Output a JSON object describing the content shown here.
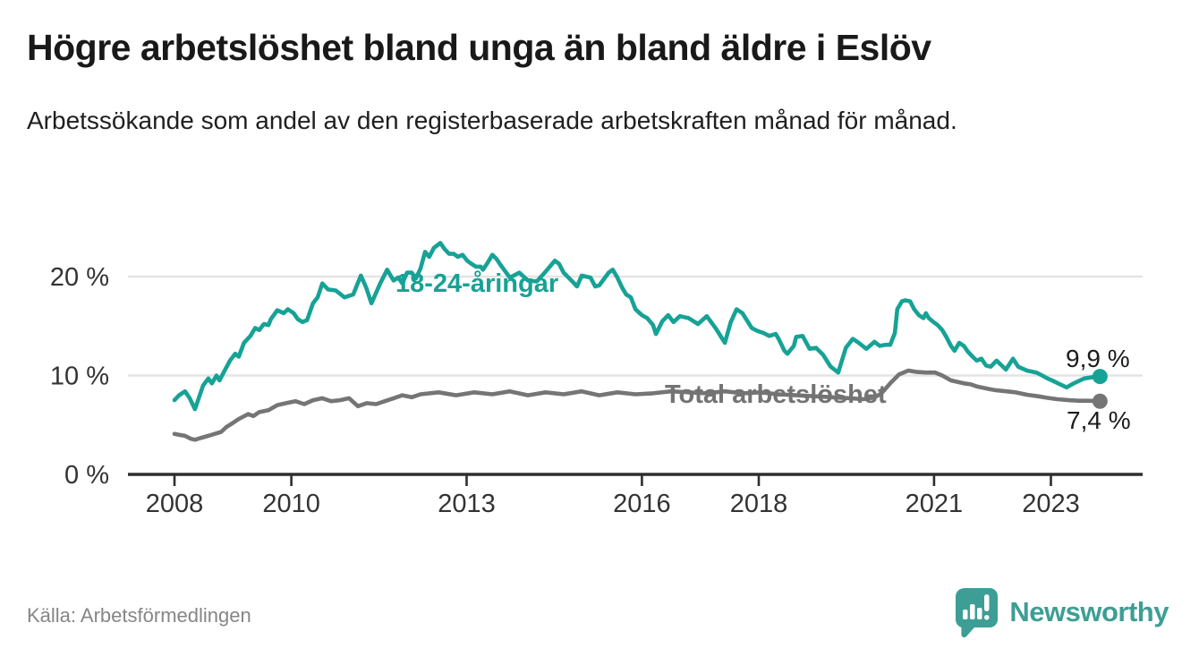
{
  "header": {
    "title": "Högre arbetslöshet bland unga än bland äldre i Eslöv",
    "subtitle": "Arbetssökande som andel av den registerbaserade arbetskraften månad för månad."
  },
  "chart_data": {
    "type": "line",
    "title": "Högre arbetslöshet bland unga än bland äldre i Eslöv",
    "subtitle": "Arbetssökande som andel av den registerbaserade arbetskraften månad för månad.",
    "grid": "horizontal-only",
    "x_axis": {
      "ticks": [
        2008,
        2010,
        2013,
        2016,
        2018,
        2021,
        2023
      ],
      "range": [
        2007.2,
        2024.6
      ]
    },
    "y_axis": {
      "ticks": [
        0,
        10,
        20
      ],
      "tick_suffix": " %",
      "range": [
        0,
        24
      ]
    },
    "colors": {
      "youth": "#17a296",
      "total": "#757575",
      "gridline": "#e4e4e4",
      "axis": "#2e2e2e",
      "tick_text": "#333333"
    },
    "series": [
      {
        "name": "18-24-åringar",
        "color": "#17a296",
        "end_value": 9.9,
        "end_label": "9,9 %",
        "points": [
          [
            2008.0,
            7.5
          ],
          [
            2008.08,
            8.0
          ],
          [
            2008.18,
            8.4
          ],
          [
            2008.26,
            7.7
          ],
          [
            2008.35,
            6.6
          ],
          [
            2008.49,
            9.0
          ],
          [
            2008.58,
            9.7
          ],
          [
            2008.64,
            9.2
          ],
          [
            2008.72,
            10.0
          ],
          [
            2008.77,
            9.5
          ],
          [
            2008.84,
            10.3
          ],
          [
            2008.95,
            11.5
          ],
          [
            2009.04,
            12.2
          ],
          [
            2009.1,
            11.9
          ],
          [
            2009.19,
            13.3
          ],
          [
            2009.3,
            14.0
          ],
          [
            2009.38,
            14.8
          ],
          [
            2009.45,
            14.6
          ],
          [
            2009.53,
            15.2
          ],
          [
            2009.61,
            15.1
          ],
          [
            2009.65,
            15.7
          ],
          [
            2009.76,
            16.6
          ],
          [
            2009.87,
            16.3
          ],
          [
            2009.94,
            16.7
          ],
          [
            2010.04,
            16.3
          ],
          [
            2010.11,
            15.7
          ],
          [
            2010.19,
            15.4
          ],
          [
            2010.27,
            15.6
          ],
          [
            2010.37,
            17.3
          ],
          [
            2010.45,
            17.9
          ],
          [
            2010.53,
            19.3
          ],
          [
            2010.63,
            18.7
          ],
          [
            2010.76,
            18.6
          ],
          [
            2010.91,
            17.9
          ],
          [
            2011.06,
            18.2
          ],
          [
            2011.19,
            20.1
          ],
          [
            2011.28,
            18.9
          ],
          [
            2011.37,
            17.3
          ],
          [
            2011.52,
            19.3
          ],
          [
            2011.64,
            20.7
          ],
          [
            2011.75,
            19.6
          ],
          [
            2011.83,
            19.9
          ],
          [
            2011.9,
            19.3
          ],
          [
            2011.98,
            20.4
          ],
          [
            2012.06,
            20.4
          ],
          [
            2012.13,
            19.8
          ],
          [
            2012.21,
            20.8
          ],
          [
            2012.29,
            22.5
          ],
          [
            2012.36,
            22.0
          ],
          [
            2012.44,
            22.9
          ],
          [
            2012.55,
            23.4
          ],
          [
            2012.62,
            22.8
          ],
          [
            2012.7,
            22.3
          ],
          [
            2012.78,
            22.3
          ],
          [
            2012.85,
            22.0
          ],
          [
            2012.93,
            22.2
          ],
          [
            2013.01,
            21.6
          ],
          [
            2013.08,
            21.3
          ],
          [
            2013.16,
            21.0
          ],
          [
            2013.24,
            21.0
          ],
          [
            2013.28,
            20.7
          ],
          [
            2013.36,
            21.4
          ],
          [
            2013.44,
            22.2
          ],
          [
            2013.51,
            21.8
          ],
          [
            2013.59,
            21.1
          ],
          [
            2013.74,
            19.9
          ],
          [
            2013.9,
            20.4
          ],
          [
            2014.05,
            19.6
          ],
          [
            2014.2,
            19.5
          ],
          [
            2014.35,
            20.5
          ],
          [
            2014.51,
            21.6
          ],
          [
            2014.58,
            21.3
          ],
          [
            2014.66,
            20.4
          ],
          [
            2014.81,
            19.5
          ],
          [
            2014.89,
            19.0
          ],
          [
            2014.97,
            20.1
          ],
          [
            2015.12,
            19.9
          ],
          [
            2015.2,
            19.0
          ],
          [
            2015.27,
            19.1
          ],
          [
            2015.43,
            20.4
          ],
          [
            2015.5,
            20.7
          ],
          [
            2015.58,
            19.9
          ],
          [
            2015.66,
            18.9
          ],
          [
            2015.73,
            18.2
          ],
          [
            2015.81,
            17.9
          ],
          [
            2015.89,
            16.7
          ],
          [
            2016.0,
            16.1
          ],
          [
            2016.09,
            15.8
          ],
          [
            2016.19,
            15.1
          ],
          [
            2016.24,
            14.2
          ],
          [
            2016.35,
            15.5
          ],
          [
            2016.45,
            16.1
          ],
          [
            2016.54,
            15.4
          ],
          [
            2016.65,
            16.0
          ],
          [
            2016.8,
            15.8
          ],
          [
            2016.96,
            15.2
          ],
          [
            2017.11,
            16.0
          ],
          [
            2017.26,
            14.8
          ],
          [
            2017.42,
            13.3
          ],
          [
            2017.52,
            15.4
          ],
          [
            2017.62,
            16.7
          ],
          [
            2017.72,
            16.3
          ],
          [
            2017.88,
            14.8
          ],
          [
            2017.98,
            14.5
          ],
          [
            2018.08,
            14.3
          ],
          [
            2018.18,
            14.0
          ],
          [
            2018.29,
            14.2
          ],
          [
            2018.34,
            13.7
          ],
          [
            2018.44,
            12.5
          ],
          [
            2018.49,
            12.2
          ],
          [
            2018.6,
            13.0
          ],
          [
            2018.64,
            13.9
          ],
          [
            2018.75,
            14.0
          ],
          [
            2018.87,
            12.7
          ],
          [
            2018.98,
            12.8
          ],
          [
            2019.1,
            12.1
          ],
          [
            2019.23,
            10.9
          ],
          [
            2019.36,
            10.3
          ],
          [
            2019.49,
            12.8
          ],
          [
            2019.61,
            13.7
          ],
          [
            2019.71,
            13.3
          ],
          [
            2019.84,
            12.7
          ],
          [
            2019.98,
            13.4
          ],
          [
            2020.07,
            13.0
          ],
          [
            2020.17,
            13.1
          ],
          [
            2020.25,
            13.1
          ],
          [
            2020.33,
            14.3
          ],
          [
            2020.37,
            16.7
          ],
          [
            2020.45,
            17.5
          ],
          [
            2020.51,
            17.6
          ],
          [
            2020.59,
            17.5
          ],
          [
            2020.66,
            16.7
          ],
          [
            2020.74,
            16.1
          ],
          [
            2020.82,
            15.8
          ],
          [
            2020.86,
            16.3
          ],
          [
            2020.91,
            15.8
          ],
          [
            2020.99,
            15.4
          ],
          [
            2021.06,
            15.1
          ],
          [
            2021.14,
            14.6
          ],
          [
            2021.21,
            13.9
          ],
          [
            2021.29,
            13.0
          ],
          [
            2021.35,
            12.5
          ],
          [
            2021.43,
            13.3
          ],
          [
            2021.51,
            13.0
          ],
          [
            2021.58,
            12.4
          ],
          [
            2021.66,
            11.9
          ],
          [
            2021.73,
            11.5
          ],
          [
            2021.81,
            11.7
          ],
          [
            2021.89,
            11.0
          ],
          [
            2021.97,
            10.9
          ],
          [
            2022.07,
            11.5
          ],
          [
            2022.23,
            10.6
          ],
          [
            2022.35,
            11.7
          ],
          [
            2022.44,
            10.9
          ],
          [
            2022.59,
            10.5
          ],
          [
            2022.75,
            10.3
          ],
          [
            2022.85,
            10.0
          ],
          [
            2022.94,
            9.7
          ],
          [
            2023.02,
            9.5
          ],
          [
            2023.16,
            9.1
          ],
          [
            2023.27,
            8.8
          ],
          [
            2023.39,
            9.2
          ],
          [
            2023.57,
            9.7
          ],
          [
            2023.73,
            9.85
          ],
          [
            2023.84,
            9.9
          ]
        ]
      },
      {
        "name": "Total arbetslöshet",
        "color": "#757575",
        "end_value": 7.4,
        "end_label": "7,4 %",
        "points": [
          [
            2008.0,
            4.1
          ],
          [
            2008.08,
            4.0
          ],
          [
            2008.18,
            3.9
          ],
          [
            2008.28,
            3.6
          ],
          [
            2008.35,
            3.5
          ],
          [
            2008.46,
            3.7
          ],
          [
            2008.58,
            3.9
          ],
          [
            2008.69,
            4.1
          ],
          [
            2008.8,
            4.3
          ],
          [
            2008.89,
            4.8
          ],
          [
            2009.0,
            5.2
          ],
          [
            2009.1,
            5.6
          ],
          [
            2009.26,
            6.1
          ],
          [
            2009.35,
            5.9
          ],
          [
            2009.45,
            6.3
          ],
          [
            2009.61,
            6.5
          ],
          [
            2009.76,
            7.0
          ],
          [
            2009.91,
            7.2
          ],
          [
            2010.07,
            7.4
          ],
          [
            2010.22,
            7.1
          ],
          [
            2010.37,
            7.5
          ],
          [
            2010.53,
            7.7
          ],
          [
            2010.68,
            7.4
          ],
          [
            2010.83,
            7.5
          ],
          [
            2010.99,
            7.7
          ],
          [
            2011.14,
            6.9
          ],
          [
            2011.29,
            7.2
          ],
          [
            2011.45,
            7.1
          ],
          [
            2011.6,
            7.4
          ],
          [
            2011.75,
            7.7
          ],
          [
            2011.9,
            8.0
          ],
          [
            2012.06,
            7.8
          ],
          [
            2012.21,
            8.1
          ],
          [
            2012.52,
            8.3
          ],
          [
            2012.82,
            8.0
          ],
          [
            2013.13,
            8.3
          ],
          [
            2013.44,
            8.1
          ],
          [
            2013.74,
            8.4
          ],
          [
            2014.05,
            8.0
          ],
          [
            2014.35,
            8.3
          ],
          [
            2014.66,
            8.1
          ],
          [
            2014.97,
            8.4
          ],
          [
            2015.27,
            8.0
          ],
          [
            2015.58,
            8.3
          ],
          [
            2015.89,
            8.1
          ],
          [
            2016.19,
            8.2
          ],
          [
            2016.5,
            8.4
          ],
          [
            2016.8,
            8.3
          ],
          [
            2017.11,
            8.2
          ],
          [
            2017.42,
            8.4
          ],
          [
            2017.72,
            8.2
          ],
          [
            2018.03,
            8.3
          ],
          [
            2018.34,
            8.1
          ],
          [
            2018.64,
            8.0
          ],
          [
            2018.95,
            7.9
          ],
          [
            2019.26,
            7.8
          ],
          [
            2019.56,
            7.7
          ],
          [
            2019.79,
            7.6
          ],
          [
            2019.99,
            7.8
          ],
          [
            2020.1,
            8.2
          ],
          [
            2020.25,
            9.2
          ],
          [
            2020.4,
            10.1
          ],
          [
            2020.56,
            10.5
          ],
          [
            2020.71,
            10.35
          ],
          [
            2020.86,
            10.3
          ],
          [
            2021.02,
            10.3
          ],
          [
            2021.14,
            10.0
          ],
          [
            2021.29,
            9.5
          ],
          [
            2021.51,
            9.2
          ],
          [
            2021.63,
            9.1
          ],
          [
            2021.73,
            8.9
          ],
          [
            2021.97,
            8.6
          ],
          [
            2022.07,
            8.5
          ],
          [
            2022.24,
            8.4
          ],
          [
            2022.39,
            8.3
          ],
          [
            2022.59,
            8.05
          ],
          [
            2022.78,
            7.9
          ],
          [
            2022.93,
            7.75
          ],
          [
            2023.11,
            7.6
          ],
          [
            2023.31,
            7.5
          ],
          [
            2023.47,
            7.45
          ],
          [
            2023.62,
            7.45
          ],
          [
            2023.84,
            7.4
          ]
        ]
      }
    ]
  },
  "labels": {
    "series_youth": "18-24-åringar",
    "series_total": "Total arbetslöshet",
    "end_youth": "9,9 %",
    "end_total": "7,4 %"
  },
  "footer": {
    "source": "Källa: Arbetsförmedlingen",
    "brand": "Newsworthy",
    "brand_color": "#3d9e95"
  }
}
